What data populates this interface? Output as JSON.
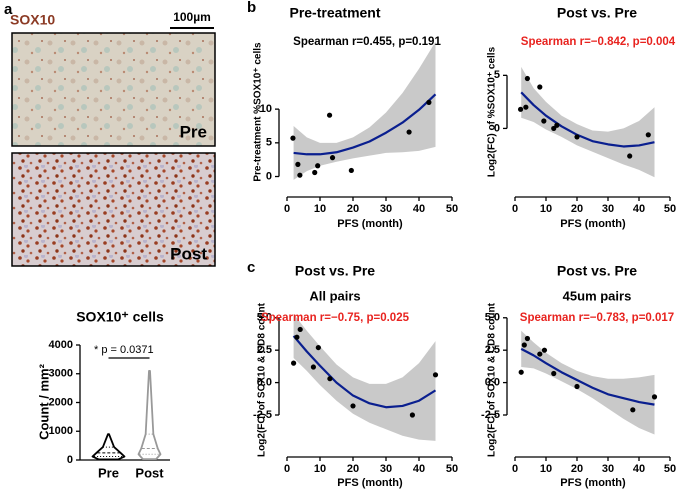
{
  "figure": {
    "panel_labels": [
      "a",
      "b",
      "c"
    ],
    "stain": "SOX10",
    "scale_bar": "100µm",
    "images": [
      "Pre",
      "Post"
    ]
  },
  "chart_data": [
    {
      "type": "violin",
      "title": "SOX10⁺ cells",
      "ylabel": "Count / mm²",
      "categories": [
        "Pre",
        "Post"
      ],
      "colors": [
        "#000000",
        "#999999"
      ],
      "min": [
        20,
        30
      ],
      "q1": [
        120,
        200
      ],
      "median": [
        250,
        400
      ],
      "q3": [
        450,
        900
      ],
      "max": [
        900,
        3100
      ],
      "annotation": "* p = 0.0371",
      "ylim": [
        0,
        4000
      ],
      "yticks": [
        0,
        1000,
        2000,
        3000,
        4000
      ]
    },
    {
      "type": "scatter",
      "title": "Pre-treatment",
      "annotation": "Spearman r=0.455, p=0.191",
      "annotation_color": "#000000",
      "xlabel": "PFS (month)",
      "ylabel": "Pre-treatment %SOX10⁺ cells",
      "x": [
        1.8,
        3.3,
        3.9,
        8.4,
        9.3,
        12.9,
        13.8,
        19.5,
        37,
        43
      ],
      "y": [
        5.7,
        1.8,
        0.2,
        0.6,
        1.6,
        9.1,
        2.8,
        0.9,
        6.6,
        11
      ],
      "fit_x": [
        2,
        6,
        10,
        15,
        20,
        25,
        30,
        35,
        40,
        45
      ],
      "fit_y": [
        3.5,
        3.3,
        3.3,
        3.6,
        4.3,
        5.2,
        6.5,
        8.0,
        9.9,
        12.2
      ],
      "ci_upper": [
        7.5,
        5.8,
        5.0,
        5.0,
        5.8,
        7.3,
        9.5,
        12.4,
        16,
        20
      ],
      "ci_lower": [
        -0.5,
        0.8,
        1.6,
        2.2,
        2.7,
        3.1,
        3.5,
        3.6,
        3.8,
        4.4
      ],
      "point_color": "#000000",
      "fit_color": "#0a1f8f",
      "band_color": "#c9c9c9",
      "xlim": [
        0,
        50
      ],
      "ylim": [
        -2,
        21
      ],
      "xticks": [
        0,
        10,
        20,
        30,
        40,
        50
      ],
      "yticks": [
        0,
        5,
        10
      ]
    },
    {
      "type": "scatter",
      "title": "Post vs. Pre",
      "annotation": "Spearman r=−0.842, p=0.004",
      "annotation_color": "#e8231f",
      "xlabel": "PFS (month)",
      "ylabel": "Log2(FC) of %SOX10⁺ cells",
      "x": [
        1.8,
        3.5,
        4,
        8,
        9.3,
        12.5,
        13.5,
        20,
        37,
        43
      ],
      "y": [
        1.8,
        2.0,
        4.7,
        3.9,
        0.7,
        0,
        0.3,
        -0.8,
        -2.6,
        -0.6
      ],
      "fit_x": [
        2,
        6,
        10,
        15,
        20,
        25,
        30,
        35,
        40,
        45
      ],
      "fit_y": [
        3.4,
        2.2,
        1.2,
        0.2,
        -0.6,
        -1.2,
        -1.5,
        -1.7,
        -1.6,
        -1.3
      ],
      "ci_upper": [
        5.8,
        3.8,
        2.5,
        1.2,
        0.4,
        -0.2,
        -0.3,
        0.0,
        0.7,
        2.0
      ],
      "ci_lower": [
        1.0,
        0.6,
        -0.1,
        -0.8,
        -1.6,
        -2.2,
        -2.8,
        -3.4,
        -3.9,
        -4.6
      ],
      "point_color": "#000000",
      "fit_color": "#0a1f8f",
      "band_color": "#c9c9c9",
      "xlim": [
        0,
        50
      ],
      "ylim": [
        -5.8,
        8.8
      ],
      "xticks": [
        0,
        10,
        20,
        30,
        40,
        50
      ],
      "yticks": [
        0,
        5
      ]
    },
    {
      "type": "scatter",
      "title": "Post vs. Pre",
      "subtitle": "All pairs",
      "annotation": "Spearman r=−0.75, p=0.025",
      "annotation_color": "#e8231f",
      "xlabel": "PFS (month)",
      "ylabel": "Log2(FC) of SOX10 & CD8 count",
      "x": [
        2,
        3,
        4,
        8,
        9.5,
        13,
        20,
        38,
        45
      ],
      "y": [
        1.5,
        3.5,
        4.1,
        1.2,
        2.7,
        0.3,
        -1.8,
        -2.5,
        0.6
      ],
      "fit_x": [
        2,
        6,
        10,
        15,
        20,
        25,
        30,
        35,
        40,
        45
      ],
      "fit_y": [
        3.6,
        2.4,
        1.3,
        0.0,
        -1.0,
        -1.6,
        -1.9,
        -1.8,
        -1.4,
        -0.6
      ],
      "ci_upper": [
        5.3,
        4.0,
        2.8,
        1.4,
        0.4,
        -0.1,
        -0.1,
        0.4,
        1.5,
        3.2
      ],
      "ci_lower": [
        1.9,
        0.9,
        -0.2,
        -1.4,
        -2.4,
        -3.1,
        -3.6,
        -4.1,
        -4.4,
        -4.5
      ],
      "point_color": "#000000",
      "fit_color": "#0a1f8f",
      "band_color": "#c9c9c9",
      "xlim": [
        0,
        50
      ],
      "ylim": [
        -5.2,
        5.6
      ],
      "xticks": [
        0,
        10,
        20,
        30,
        40,
        50
      ],
      "yticks": [
        {
          "value": -2.5,
          "label": "-2.5"
        },
        {
          "value": 0,
          "label": "0.0"
        },
        {
          "value": 2.5,
          "label": "2.5"
        },
        {
          "value": 5,
          "label": "5.0"
        }
      ]
    },
    {
      "type": "scatter",
      "title": "Post vs. Pre",
      "subtitle": "45um pairs",
      "annotation": "Spearman r=−0.783, p=0.017",
      "annotation_color": "#e8231f",
      "xlabel": "PFS (month)",
      "ylabel": "Log2(FC) of SOX10 & CD8 count",
      "x": [
        2,
        3,
        4,
        8,
        9.5,
        12.5,
        20,
        38,
        45
      ],
      "y": [
        0.8,
        2.9,
        3.4,
        2.2,
        2.5,
        0.7,
        -0.3,
        -2.1,
        -1.1
      ],
      "fit_x": [
        2,
        6,
        10,
        15,
        20,
        25,
        30,
        35,
        40,
        45
      ],
      "fit_y": [
        2.6,
        2.1,
        1.5,
        0.8,
        0.2,
        -0.4,
        -0.9,
        -1.2,
        -1.5,
        -1.7
      ],
      "ci_upper": [
        4.0,
        3.1,
        2.3,
        1.5,
        0.9,
        0.5,
        0.3,
        0.3,
        0.4,
        0.6
      ],
      "ci_lower": [
        1.2,
        1.1,
        0.7,
        0.1,
        -0.5,
        -1.2,
        -2.0,
        -2.8,
        -3.5,
        -4.0
      ],
      "point_color": "#000000",
      "fit_color": "#0a1f8f",
      "band_color": "#c9c9c9",
      "xlim": [
        0,
        50
      ],
      "ylim": [
        -5.2,
        5.6
      ],
      "xticks": [
        0,
        10,
        20,
        30,
        40,
        50
      ],
      "yticks": [
        {
          "value": -2.5,
          "label": "-2.5"
        },
        {
          "value": 0,
          "label": "0.0"
        },
        {
          "value": 2.5,
          "label": "2.5"
        },
        {
          "value": 5,
          "label": "5.0"
        }
      ]
    }
  ]
}
